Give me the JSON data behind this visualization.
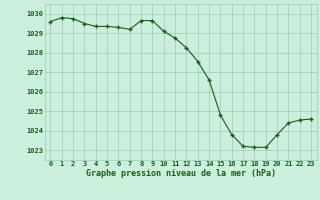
{
  "x": [
    0,
    1,
    2,
    3,
    4,
    5,
    6,
    7,
    8,
    9,
    10,
    11,
    12,
    13,
    14,
    15,
    16,
    17,
    18,
    19,
    20,
    21,
    22,
    23
  ],
  "y": [
    1029.6,
    1029.8,
    1029.75,
    1029.5,
    1029.35,
    1029.35,
    1029.3,
    1029.2,
    1029.65,
    1029.65,
    1029.1,
    1028.75,
    1028.25,
    1027.55,
    1026.6,
    1024.8,
    1023.8,
    1023.2,
    1023.15,
    1023.15,
    1023.8,
    1024.4,
    1024.55,
    1024.6
  ],
  "ylim": [
    1022.5,
    1030.5
  ],
  "yticks": [
    1023,
    1024,
    1025,
    1026,
    1027,
    1028,
    1029,
    1030
  ],
  "xticks": [
    0,
    1,
    2,
    3,
    4,
    5,
    6,
    7,
    8,
    9,
    10,
    11,
    12,
    13,
    14,
    15,
    16,
    17,
    18,
    19,
    20,
    21,
    22,
    23
  ],
  "line_color": "#1a5c1a",
  "marker_color": "#1a5c1a",
  "bg_color": "#cceedd",
  "grid_color": "#99ccbb",
  "xlabel": "Graphe pression niveau de la mer (hPa)",
  "xlabel_color": "#1a5c1a",
  "tick_fontsize": 5.0,
  "xlabel_fontsize": 6.0,
  "figsize": [
    3.2,
    2.0
  ],
  "dpi": 100
}
